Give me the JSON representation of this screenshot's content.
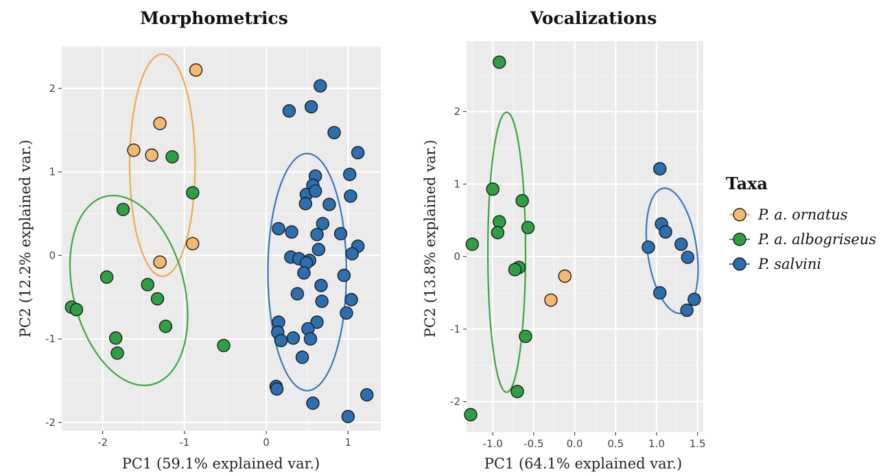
{
  "colors": {
    "ornatus": "#F5B870",
    "ornatus_ellipse": "#F2A94E",
    "albogriseus": "#2EA043",
    "albogriseus_ellipse": "#3BA63F",
    "salvini": "#2C6FB0",
    "salvini_ellipse": "#3A74BE",
    "panel_bg": "#EBEBEB",
    "grid_major": "#FFFFFF",
    "grid_minor": "#F4F4F4"
  },
  "chart_data": [
    {
      "type": "scatter",
      "title": "Morphometrics",
      "xlabel": "PC1 (59.1% explained var.)",
      "ylabel": "PC2 (12.2% explained var.)",
      "xlim": [
        -2.5,
        1.4
      ],
      "ylim": [
        -2.1,
        2.5
      ],
      "xticks": [
        -2,
        -1,
        0,
        1
      ],
      "yticks": [
        -2,
        -1,
        0,
        1,
        2
      ],
      "series": [
        {
          "name": "P. a. ornatus",
          "key": "ornatus",
          "points": [
            [
              -0.86,
              2.22
            ],
            [
              -1.3,
              1.58
            ],
            [
              -1.62,
              1.26
            ],
            [
              -1.4,
              1.2
            ],
            [
              -0.9,
              0.14
            ],
            [
              -1.3,
              -0.08
            ]
          ],
          "ellipse": {
            "cx": -1.27,
            "cy": 1.08,
            "rx": 0.4,
            "ry": 1.33
          }
        },
        {
          "name": "P. a. albogriseus",
          "key": "albogriseus",
          "points": [
            [
              -1.15,
              1.18
            ],
            [
              -0.9,
              0.75
            ],
            [
              -1.75,
              0.55
            ],
            [
              -1.95,
              -0.26
            ],
            [
              -1.45,
              -0.35
            ],
            [
              -1.33,
              -0.52
            ],
            [
              -2.38,
              -0.62
            ],
            [
              -2.32,
              -0.65
            ],
            [
              -1.23,
              -0.85
            ],
            [
              -1.84,
              -0.99
            ],
            [
              -1.82,
              -1.17
            ],
            [
              -0.52,
              -1.08
            ]
          ],
          "ellipse": {
            "cx": -1.68,
            "cy": -0.42,
            "rx": 0.68,
            "ry": 1.16,
            "rotate": -14
          }
        },
        {
          "name": "P. salvini",
          "key": "salvini",
          "points": [
            [
              0.66,
              2.03
            ],
            [
              0.55,
              1.78
            ],
            [
              0.28,
              1.73
            ],
            [
              0.83,
              1.47
            ],
            [
              1.12,
              1.23
            ],
            [
              1.02,
              0.97
            ],
            [
              0.6,
              0.95
            ],
            [
              0.57,
              0.84
            ],
            [
              0.49,
              0.73
            ],
            [
              0.6,
              0.77
            ],
            [
              1.03,
              0.71
            ],
            [
              0.48,
              0.62
            ],
            [
              0.77,
              0.61
            ],
            [
              0.69,
              0.38
            ],
            [
              0.15,
              0.32
            ],
            [
              0.31,
              0.28
            ],
            [
              0.62,
              0.25
            ],
            [
              0.91,
              0.26
            ],
            [
              1.12,
              0.11
            ],
            [
              0.64,
              0.07
            ],
            [
              0.3,
              -0.02
            ],
            [
              0.4,
              -0.04
            ],
            [
              0.53,
              -0.06
            ],
            [
              0.49,
              -0.09
            ],
            [
              1.05,
              0.02
            ],
            [
              0.46,
              -0.21
            ],
            [
              0.95,
              -0.24
            ],
            [
              0.67,
              -0.36
            ],
            [
              0.38,
              -0.46
            ],
            [
              1.04,
              -0.53
            ],
            [
              0.68,
              -0.55
            ],
            [
              0.98,
              -0.69
            ],
            [
              0.15,
              -0.8
            ],
            [
              0.62,
              -0.8
            ],
            [
              0.51,
              -0.88
            ],
            [
              0.14,
              -0.92
            ],
            [
              0.18,
              -1.02
            ],
            [
              0.33,
              -0.99
            ],
            [
              0.54,
              -1.0
            ],
            [
              0.44,
              -1.22
            ],
            [
              0.12,
              -1.57
            ],
            [
              0.13,
              -1.6
            ],
            [
              0.57,
              -1.77
            ],
            [
              1.23,
              -1.67
            ],
            [
              1.0,
              -1.93
            ]
          ],
          "ellipse": {
            "cx": 0.5,
            "cy": -0.2,
            "rx": 0.48,
            "ry": 1.42
          }
        }
      ]
    },
    {
      "type": "scatter",
      "title": "Vocalizations",
      "xlabel": "PC1 (64.1% explained var.)",
      "ylabel": "PC2 (13.8% explained var.)",
      "xlim": [
        -1.32,
        1.57
      ],
      "ylim": [
        -2.42,
        2.97
      ],
      "xticks": [
        -1.0,
        -0.5,
        0.0,
        0.5,
        1.0,
        1.5
      ],
      "xtick_labels": [
        "-1.0",
        "-0.5",
        "0.0",
        "0.5",
        "1.0",
        "1.5"
      ],
      "yticks": [
        -2,
        -1,
        0,
        1,
        2
      ],
      "series": [
        {
          "name": "P. a. ornatus",
          "key": "ornatus",
          "points": [
            [
              -0.12,
              -0.27
            ],
            [
              -0.29,
              -0.6
            ]
          ],
          "ellipse": null
        },
        {
          "name": "P. a. albogriseus",
          "key": "albogriseus",
          "points": [
            [
              -0.92,
              2.68
            ],
            [
              -1.0,
              0.93
            ],
            [
              -0.64,
              0.77
            ],
            [
              -0.92,
              0.48
            ],
            [
              -0.57,
              0.4
            ],
            [
              -0.94,
              0.33
            ],
            [
              -1.25,
              0.17
            ],
            [
              -0.68,
              -0.15
            ],
            [
              -0.73,
              -0.18
            ],
            [
              -0.6,
              -1.1
            ],
            [
              -0.7,
              -1.86
            ],
            [
              -1.27,
              -2.18
            ]
          ],
          "ellipse": {
            "cx": -0.83,
            "cy": 0.06,
            "rx": 0.23,
            "ry": 1.93
          }
        },
        {
          "name": "P. salvini",
          "key": "salvini",
          "points": [
            [
              1.04,
              1.21
            ],
            [
              1.06,
              0.45
            ],
            [
              1.11,
              0.34
            ],
            [
              1.3,
              0.17
            ],
            [
              0.9,
              0.13
            ],
            [
              1.38,
              -0.01
            ],
            [
              1.04,
              -0.5
            ],
            [
              1.46,
              -0.59
            ],
            [
              1.37,
              -0.74
            ]
          ],
          "ellipse": {
            "cx": 1.19,
            "cy": 0.08,
            "rx": 0.3,
            "ry": 0.87,
            "rotate": -8
          }
        }
      ]
    }
  ],
  "legend": {
    "title": "Taxa",
    "items": [
      {
        "key": "ornatus",
        "label": "P. a. ornatus"
      },
      {
        "key": "albogriseus",
        "label": "P. a. albogriseus"
      },
      {
        "key": "salvini",
        "label": "P. salvini"
      }
    ]
  }
}
